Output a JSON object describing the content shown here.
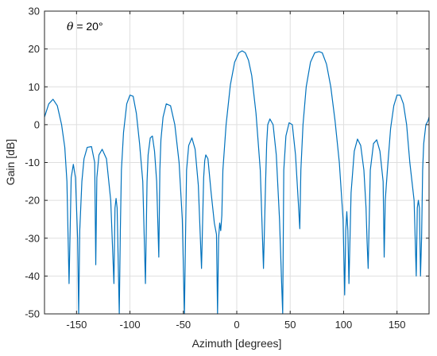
{
  "chart_data": {
    "type": "line",
    "title": "",
    "xlabel": "Azimuth [degrees]",
    "ylabel": "Gain [dB]",
    "xlim": [
      -180,
      180
    ],
    "ylim": [
      -50,
      30
    ],
    "xticks": [
      -150,
      -100,
      -50,
      0,
      50,
      100,
      150
    ],
    "yticks": [
      -50,
      -40,
      -30,
      -20,
      -10,
      0,
      10,
      20,
      30
    ],
    "grid": true,
    "annotation": {
      "symbol": "θ",
      "text": " = 20°"
    },
    "colors": {
      "line": "#0072BD",
      "grid": "#DFDFDF",
      "axis": "#262626"
    },
    "series": [
      {
        "x": [
          -180,
          -176,
          -172,
          -168,
          -164,
          -161,
          -159,
          -157,
          -155,
          -153,
          -151,
          -149,
          -148,
          -147,
          -145,
          -143,
          -140,
          -136,
          -133,
          -132,
          -131,
          -129,
          -126,
          -122,
          -118,
          -115,
          -114,
          -113,
          -112,
          -110,
          -109,
          -108,
          -106,
          -103,
          -100,
          -97,
          -94,
          -91,
          -88,
          -85.5,
          -84,
          -83,
          -81,
          -79,
          -77,
          -75,
          -73,
          -72,
          -71,
          -69,
          -66,
          -62,
          -58,
          -54,
          -51,
          -49,
          -48,
          -47,
          -45,
          -42,
          -39,
          -36,
          -33,
          -31,
          -30,
          -29,
          -27,
          -24,
          -21,
          -19,
          -18,
          -17,
          -16,
          -15,
          -14,
          -13,
          -10,
          -6,
          -2,
          2,
          5,
          8,
          11,
          14,
          18,
          22,
          25,
          27,
          28,
          29,
          31,
          34,
          37,
          40,
          42,
          43,
          44,
          46,
          49,
          52,
          55,
          57.5,
          59,
          60,
          62,
          65,
          69,
          73,
          77,
          80,
          84,
          88,
          92,
          96,
          99.5,
          101,
          102,
          103,
          104,
          105,
          107,
          110,
          113,
          116,
          119,
          121,
          122,
          123,
          125,
          128,
          131,
          134,
          137,
          138,
          139,
          141,
          144,
          147,
          150,
          153,
          156,
          159,
          162,
          166,
          168,
          169,
          170,
          171,
          172,
          173,
          174,
          175,
          177,
          179,
          180
        ],
        "y": [
          2,
          5.5,
          6.7,
          5,
          0,
          -6,
          -15,
          -42,
          -14,
          -10.5,
          -14,
          -30,
          -50,
          -28,
          -15,
          -9,
          -6,
          -5.8,
          -10,
          -37,
          -14,
          -8,
          -6.5,
          -9,
          -20,
          -42,
          -22,
          -19.5,
          -22,
          -50,
          -28,
          -12,
          -2,
          5.5,
          7.8,
          7.5,
          3,
          -5,
          -15,
          -42,
          -15,
          -8,
          -3.5,
          -3,
          -7,
          -15,
          -35,
          -12,
          -4,
          2,
          5.5,
          5,
          0,
          -10,
          -25,
          -50,
          -30,
          -12,
          -5.5,
          -3.5,
          -6.5,
          -16,
          -38,
          -14,
          -9.5,
          -8,
          -9,
          -18,
          -26,
          -29,
          -50,
          -30,
          -26,
          -28,
          -24,
          -12,
          0,
          10.5,
          16.5,
          19,
          19.5,
          19,
          17,
          13,
          3,
          -12,
          -38,
          -15,
          -5,
          0,
          1.5,
          0,
          -8,
          -25,
          -42,
          -50,
          -12,
          -3,
          0.5,
          0,
          -8,
          -20,
          -27.5,
          -12,
          0,
          10,
          16.5,
          19,
          19.3,
          19,
          16,
          10,
          1,
          -10,
          -25,
          -45,
          -28,
          -23,
          -28,
          -42,
          -18,
          -7,
          -3.8,
          -5.5,
          -12,
          -22,
          -31,
          -38,
          -12,
          -5,
          -4,
          -7,
          -15,
          -35,
          -20,
          -12,
          -1,
          5,
          7.8,
          7.8,
          5.5,
          0,
          -10,
          -20,
          -40,
          -22,
          -20,
          -22,
          -40,
          -30,
          -12,
          -5,
          0,
          1,
          2
        ]
      }
    ]
  }
}
